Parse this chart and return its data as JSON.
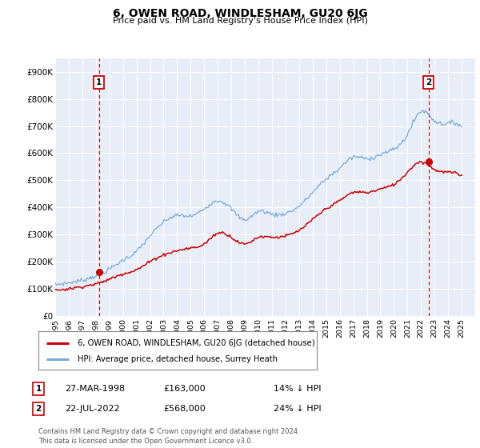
{
  "title": "6, OWEN ROAD, WINDLESHAM, GU20 6JG",
  "subtitle": "Price paid vs. HM Land Registry's House Price Index (HPI)",
  "legend_line1": "6, OWEN ROAD, WINDLESHAM, GU20 6JG (detached house)",
  "legend_line2": "HPI: Average price, detached house, Surrey Heath",
  "transaction1_date": "27-MAR-1998",
  "transaction1_price": 163000,
  "transaction1_label": "14% ↓ HPI",
  "transaction2_date": "22-JUL-2022",
  "transaction2_price": 568000,
  "transaction2_label": "24% ↓ HPI",
  "footer": "Contains HM Land Registry data © Crown copyright and database right 2024.\nThis data is licensed under the Open Government Licence v3.0.",
  "ylim": [
    0,
    950000
  ],
  "yticks": [
    0,
    100000,
    200000,
    300000,
    400000,
    500000,
    600000,
    700000,
    800000,
    900000
  ],
  "background_color": "#e8eef8",
  "line_color_red": "#cc0000",
  "line_color_blue": "#7aaadd",
  "grid_color": "#ffffff",
  "transaction1_x": 1998.22,
  "transaction2_x": 2022.55,
  "hpi_base": {
    "1995": 115000,
    "1996": 122000,
    "1997": 132000,
    "1998": 148000,
    "1999": 172000,
    "2000": 205000,
    "2001": 238000,
    "2002": 295000,
    "2003": 345000,
    "2004": 370000,
    "2005": 368000,
    "2006": 395000,
    "2007": 425000,
    "2008": 395000,
    "2009": 355000,
    "2010": 385000,
    "2011": 375000,
    "2012": 378000,
    "2013": 405000,
    "2014": 455000,
    "2015": 505000,
    "2016": 545000,
    "2017": 585000,
    "2018": 580000,
    "2019": 595000,
    "2020": 615000,
    "2021": 670000,
    "2022": 755000,
    "2023": 720000,
    "2024": 710000,
    "2025": 700000
  },
  "red_base": {
    "1995": 95000,
    "1996": 100000,
    "1997": 108000,
    "1998": 118000,
    "1999": 135000,
    "2000": 155000,
    "2001": 170000,
    "2002": 200000,
    "2003": 225000,
    "2004": 240000,
    "2005": 250000,
    "2006": 265000,
    "2007": 305000,
    "2008": 290000,
    "2009": 265000,
    "2010": 290000,
    "2011": 290000,
    "2012": 295000,
    "2013": 315000,
    "2014": 355000,
    "2015": 395000,
    "2016": 425000,
    "2017": 455000,
    "2018": 455000,
    "2019": 468000,
    "2020": 485000,
    "2021": 530000,
    "2022": 568000,
    "2023": 540000,
    "2024": 530000,
    "2025": 515000
  }
}
